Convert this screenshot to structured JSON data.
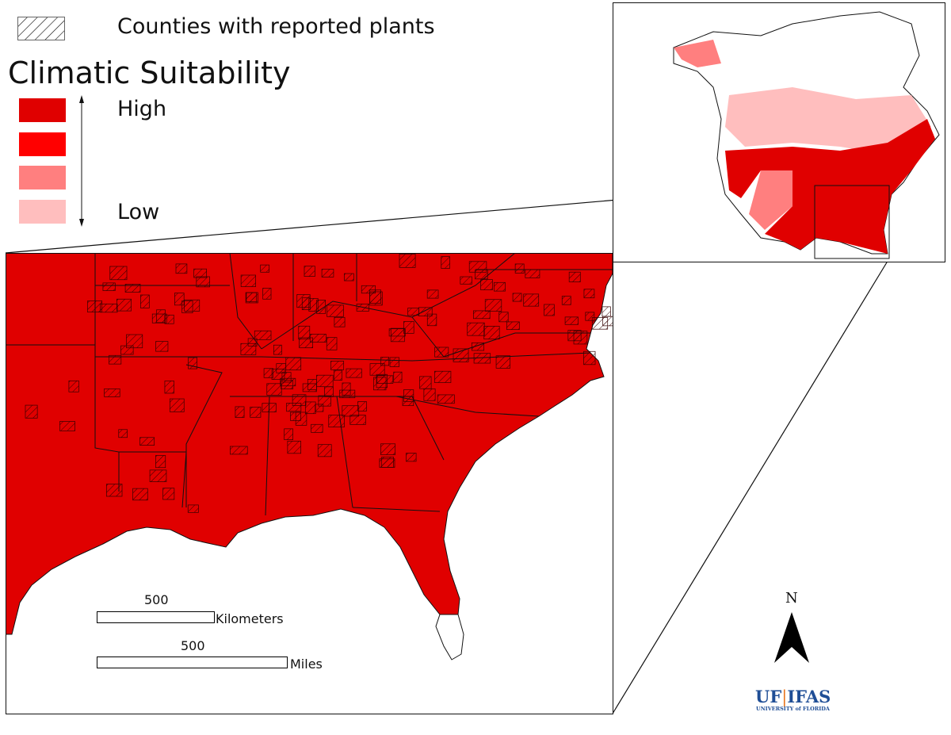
{
  "legend": {
    "hatch_label": "Counties with reported plants",
    "title": "Climatic Suitability",
    "high_label": "High",
    "low_label": "Low",
    "classes": [
      {
        "level": "high",
        "color": "#e00000"
      },
      {
        "level": "medium-high",
        "color": "#ff0000"
      },
      {
        "level": "medium-low",
        "color": "#ff7f7f"
      },
      {
        "level": "low",
        "color": "#ffbebe"
      }
    ]
  },
  "scale": {
    "km_value": "500",
    "km_unit": "Kilometers",
    "mi_value": "500",
    "mi_unit": "Miles"
  },
  "north_arrow": {
    "label": "N"
  },
  "logo": {
    "main_left": "UF",
    "main_right": "IFAS",
    "sub": "UNIVERSITY of FLORIDA",
    "color": "#1f4e96",
    "accent": "#e87722"
  }
}
